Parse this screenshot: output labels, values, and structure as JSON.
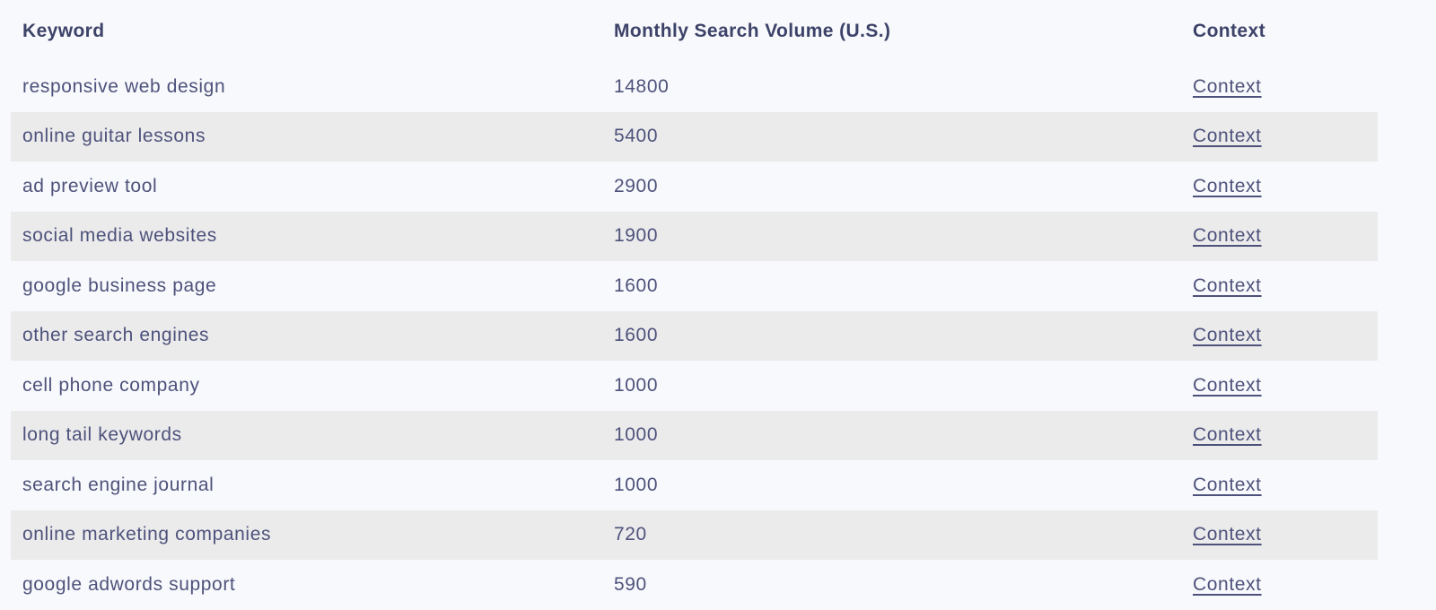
{
  "colors": {
    "page_background": "#f8f9fc",
    "row_stripe_background": "#ebebec",
    "body_text": "#4e527b",
    "header_text": "#3d4269",
    "link_text": "#4e527b"
  },
  "table": {
    "columns": [
      {
        "key": "keyword",
        "label": "Keyword"
      },
      {
        "key": "volume",
        "label": "Monthly Search Volume (U.S.)"
      },
      {
        "key": "context",
        "label": "Context"
      }
    ],
    "rows": [
      {
        "keyword": "responsive web design",
        "volume": "14800",
        "context_label": "Context"
      },
      {
        "keyword": "online guitar lessons",
        "volume": "5400",
        "context_label": "Context"
      },
      {
        "keyword": "ad preview tool",
        "volume": "2900",
        "context_label": "Context"
      },
      {
        "keyword": "social media websites",
        "volume": "1900",
        "context_label": "Context"
      },
      {
        "keyword": "google business page",
        "volume": "1600",
        "context_label": "Context"
      },
      {
        "keyword": "other search engines",
        "volume": "1600",
        "context_label": "Context"
      },
      {
        "keyword": "cell phone company",
        "volume": "1000",
        "context_label": "Context"
      },
      {
        "keyword": "long tail keywords",
        "volume": "1000",
        "context_label": "Context"
      },
      {
        "keyword": "search engine journal",
        "volume": "1000",
        "context_label": "Context"
      },
      {
        "keyword": "online marketing companies",
        "volume": "720",
        "context_label": "Context"
      },
      {
        "keyword": "google adwords support",
        "volume": "590",
        "context_label": "Context"
      }
    ]
  }
}
